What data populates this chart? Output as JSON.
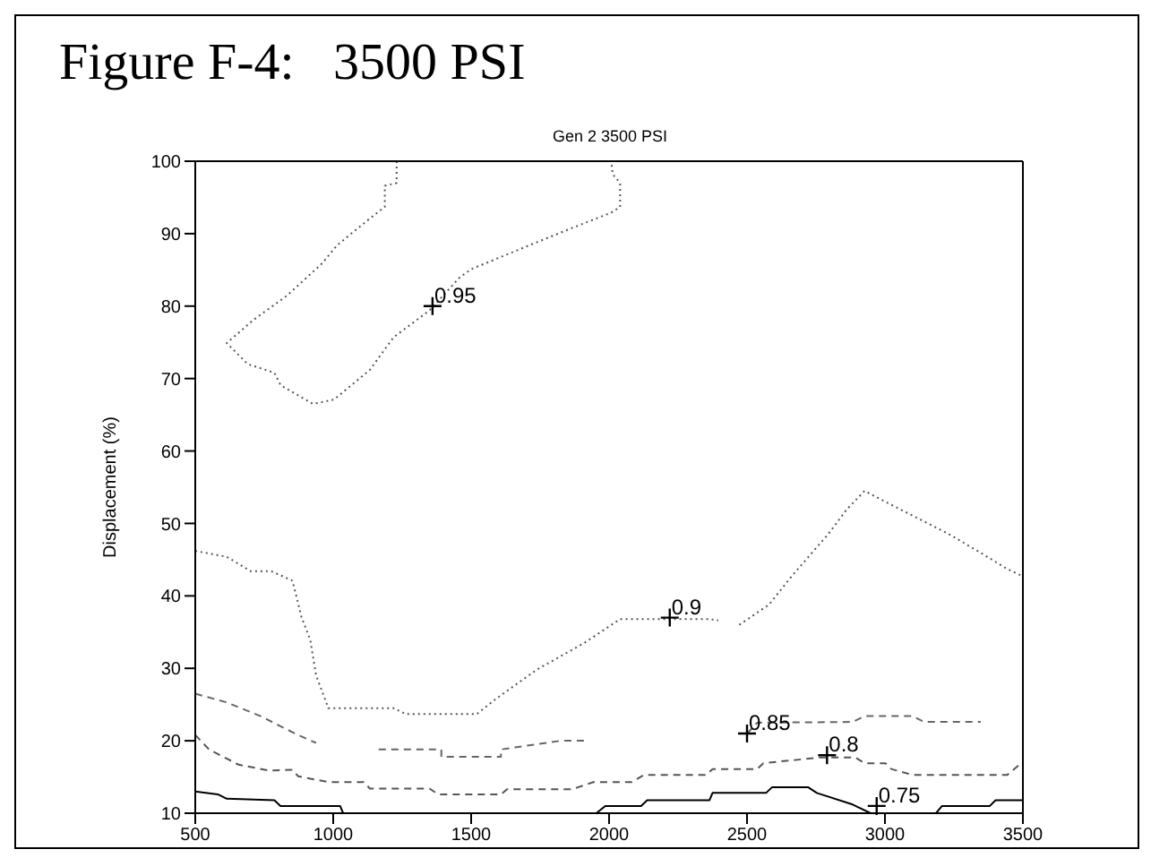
{
  "chart_data": {
    "type": "line",
    "title": "Figure F-4:   3500 PSI",
    "subtitle": "Gen 2 3500 PSI",
    "ylabel": "Displacement (%)",
    "xlim": [
      500,
      3500
    ],
    "xticks": [
      500,
      1000,
      1500,
      2000,
      2500,
      3000,
      3500
    ],
    "ylim": [
      10,
      100
    ],
    "yticks": [
      10,
      20,
      30,
      40,
      50,
      60,
      70,
      80,
      90,
      100
    ],
    "marker": "none",
    "series": [
      {
        "color": "#555555",
        "line_style": "dotted",
        "x": [
          1230,
          1230,
          1187,
          1187,
          1133,
          1014,
          960,
          831,
          711,
          614,
          690,
          787,
          809,
          927,
          1003,
          1133,
          1219,
          1349,
          1457,
          1500,
          1737,
          1867,
          2008,
          2040,
          2040,
          2013,
          2008
        ],
        "values": [
          100,
          97,
          96.6,
          93.7,
          92.1,
          88.4,
          85.9,
          81.4,
          78.1,
          74.9,
          72,
          70.8,
          69.1,
          66.5,
          67.1,
          71.2,
          75.7,
          79.4,
          83.9,
          85.1,
          88.8,
          90.8,
          92.9,
          93.7,
          97,
          98.2,
          100
        ]
      },
      {
        "color": "#555555",
        "line_style": "dotted",
        "x": [
          500,
          614,
          701,
          776,
          852,
          863,
          884,
          917,
          938,
          971,
          982,
          1219,
          1262,
          1521,
          1587,
          1737,
          1910,
          2040,
          2364,
          2396,
          2430,
          2472,
          2580,
          2666,
          2796,
          2861,
          2926,
          2991,
          3228,
          3336,
          3444,
          3500
        ],
        "values": [
          46.2,
          45.4,
          43.4,
          43.4,
          42.1,
          40.5,
          37.2,
          33.9,
          29,
          25.7,
          24.5,
          24.5,
          23.7,
          23.7,
          25.7,
          29.8,
          33.5,
          36.8,
          36.8,
          36.6,
          null,
          36,
          38.8,
          42.9,
          48.6,
          51.9,
          54.5,
          53.2,
          48.6,
          46.2,
          43.7,
          42.7
        ]
      },
      {
        "color": "#666666",
        "line_style": "dashed",
        "x": [
          500,
          614,
          743,
          809,
          873,
          938,
          1050,
          1165,
          1392,
          1392,
          1608,
          1608,
          1824,
          1921,
          2200,
          2500,
          2537,
          2883,
          2926,
          3099,
          3142,
          3347
        ],
        "values": [
          26.5,
          25.3,
          23.3,
          22,
          20.8,
          19.7,
          null,
          18.8,
          18.8,
          17.8,
          17.8,
          18.8,
          20,
          20,
          null,
          21,
          22.5,
          22.6,
          23.4,
          23.4,
          22.6,
          22.6
        ]
      },
      {
        "color": "#555555",
        "line_style": "dashed",
        "x": [
          500,
          550,
          657,
          766,
          852,
          873,
          982,
          1111,
          1133,
          1349,
          1381,
          1608,
          1630,
          1867,
          1943,
          2083,
          2127,
          2353,
          2375,
          2537,
          2559,
          2764,
          2893,
          2926,
          3002,
          3023,
          3099,
          3444,
          3500
        ],
        "values": [
          20.8,
          18.8,
          16.7,
          15.9,
          16,
          15.1,
          14.3,
          14.3,
          13.4,
          13.4,
          12.6,
          12.6,
          13.3,
          13.3,
          14.3,
          14.3,
          15.3,
          15.3,
          16.1,
          16.1,
          16.9,
          17.7,
          17.7,
          16.9,
          16.9,
          16.1,
          15.3,
          15.3,
          17.1
        ]
      },
      {
        "color": "#000000",
        "line_style": "solid",
        "x": [
          500,
          582,
          614,
          787,
          809,
          1025,
          1036,
          1500,
          1954,
          1986,
          2116,
          2138,
          2364,
          2375,
          2569,
          2591,
          2721,
          2753,
          2883,
          2948,
          3050,
          3185,
          3207,
          3380,
          3401,
          3500
        ],
        "values": [
          13,
          12.6,
          12,
          11.8,
          11,
          11,
          10,
          null,
          10,
          11,
          11,
          11.8,
          11.8,
          12.8,
          12.8,
          13.6,
          13.6,
          12.8,
          11.2,
          10,
          null,
          10,
          11,
          11,
          11.8,
          11.8
        ]
      }
    ],
    "annotations": [
      {
        "text": "0.95",
        "x": 1360,
        "y": 80
      },
      {
        "text": "0.9",
        "x": 2220,
        "y": 37
      },
      {
        "text": "0.85",
        "x": 2500,
        "y": 21
      },
      {
        "text": "0.8",
        "x": 2790,
        "y": 18
      },
      {
        "text": "0.75",
        "x": 2970,
        "y": 11
      }
    ]
  }
}
